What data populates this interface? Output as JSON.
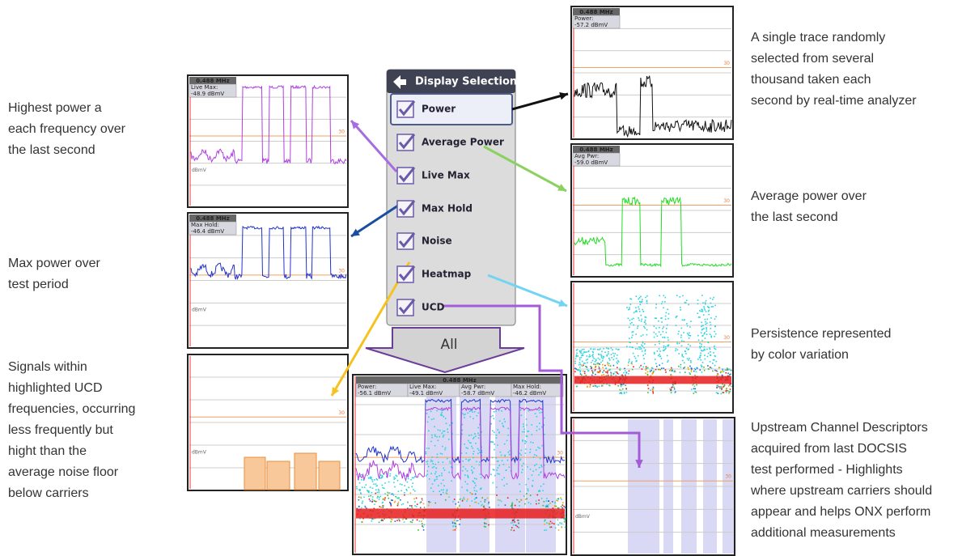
{
  "menu": {
    "title": "Display Selection",
    "items": [
      "Power",
      "Average Power",
      "Live Max",
      "Max Hold",
      "Noise",
      "Heatmap",
      "UCD"
    ],
    "all": "All"
  },
  "descriptions": {
    "left": [
      {
        "lines": [
          "Highest power a",
          "each frequency over",
          "the last second"
        ]
      },
      {
        "lines": [
          "Max power over",
          "test period"
        ]
      },
      {
        "lines": [
          "Signals within",
          "highlighted UCD",
          "frequencies, occurring",
          "less frequently but",
          "hight than the",
          "average noise floor",
          "below carriers"
        ]
      }
    ],
    "right": [
      {
        "lines": [
          "A single trace randomly",
          "selected from several",
          "thousand taken each",
          "second by real-time analyzer"
        ]
      },
      {
        "lines": [
          "Average power over",
          "the last second"
        ]
      },
      {
        "lines": [
          "Persistence represented",
          "by color variation"
        ]
      },
      {
        "lines": [
          "Upstream Channel Descriptors",
          "acquired from last DOCSIS",
          "test performed - Highlights",
          "where upstream carriers should",
          "appear and helps ONX perform",
          "additional measurements"
        ]
      }
    ]
  },
  "panels": [
    {
      "bandwidth": "0.488 MHz",
      "readouts": [
        {
          "label": "Live Max:",
          "value": "-48.9 dBmV"
        }
      ],
      "marker": "30",
      "unit": "dBmV"
    },
    {
      "bandwidth": "0.488 MHz",
      "readouts": [
        {
          "label": "Max Hold:",
          "value": "-46.4 dBmV"
        }
      ],
      "marker": "30",
      "unit": "dBmV"
    },
    {
      "marker": "30",
      "unit": "dBmV"
    },
    {
      "bandwidth": "0.488 MHz",
      "readouts": [
        {
          "label": "Power:",
          "value": "-57.2 dBmV"
        }
      ],
      "marker": "30"
    },
    {
      "bandwidth": "0.488 MHz",
      "readouts": [
        {
          "label": "Avg Pwr:",
          "value": "-59.0 dBmV"
        }
      ],
      "marker": "30"
    },
    {
      "marker": "30"
    },
    {
      "marker": "30",
      "unit": "dBmV"
    },
    {
      "bandwidth": "0.488 MHz",
      "readouts": [
        {
          "label": "Power:",
          "value": "-56.1 dBmV"
        },
        {
          "label": "Live Max:",
          "value": "-49.1 dBmV"
        },
        {
          "label": "Avg Pwr:",
          "value": "-58.7 dBmV"
        },
        {
          "label": "Max Hold:",
          "value": "-46.2 dBmV"
        }
      ],
      "marker": "30"
    }
  ]
}
